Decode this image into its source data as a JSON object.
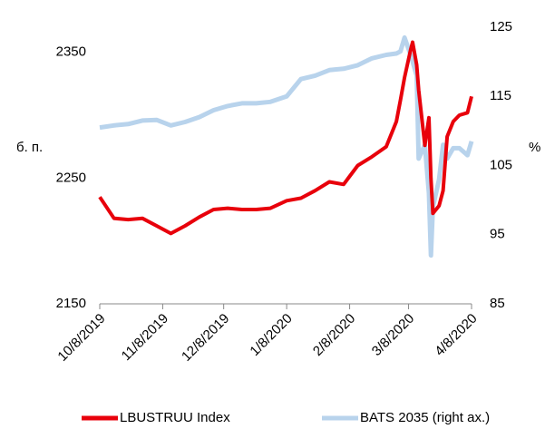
{
  "chart_data": {
    "type": "line",
    "y_label": "б. п.",
    "y2_label": "%",
    "x": [
      "10/8/2019",
      "10/15/2019",
      "10/22/2019",
      "10/29/2019",
      "11/5/2019",
      "11/12/2019",
      "11/19/2019",
      "11/26/2019",
      "12/3/2019",
      "12/10/2019",
      "12/17/2019",
      "12/24/2019",
      "12/31/2019",
      "1/8/2020",
      "1/15/2020",
      "1/22/2020",
      "1/29/2020",
      "2/5/2020",
      "2/12/2020",
      "2/19/2020",
      "2/26/2020",
      "3/2/2020",
      "3/4/2020",
      "3/6/2020",
      "3/9/2020",
      "3/10/2020",
      "3/12/2020",
      "3/13/2020",
      "3/16/2020",
      "3/18/2020",
      "3/19/2020",
      "3/20/2020",
      "3/23/2020",
      "3/25/2020",
      "3/27/2020",
      "3/30/2020",
      "4/2/2020",
      "4/6/2020",
      "4/8/2020"
    ],
    "series": [
      {
        "name": "LBUSTRUU Index",
        "color": "#e8000b",
        "axis": "y",
        "values": [
          2235,
          2218,
          2217,
          2218,
          2212,
          2206,
          2212,
          2219,
          2225,
          2226,
          2225,
          2225,
          2226,
          2232,
          2234,
          2240,
          2247,
          2245,
          2260,
          2267,
          2275,
          2295,
          2312,
          2330,
          2352,
          2358,
          2340,
          2320,
          2276,
          2298,
          2250,
          2222,
          2228,
          2240,
          2283,
          2295,
          2300,
          2302,
          2315
        ]
      },
      {
        "name": "BATS 2035 (right ax.)",
        "color": "#b8d3ec",
        "axis": "y2",
        "values": [
          110.5,
          110.8,
          111,
          111.5,
          111.6,
          110.8,
          111.3,
          112,
          113,
          113.6,
          114,
          114,
          114.2,
          115,
          117.5,
          118,
          118.8,
          119,
          119.5,
          120.5,
          121,
          121.2,
          121.5,
          123.5,
          121,
          120,
          118,
          106,
          108,
          101,
          92,
          99,
          103,
          108,
          106,
          107.5,
          107.5,
          106.5,
          108.5
        ]
      }
    ],
    "xlim": [
      "10/8/2019",
      "4/8/2020"
    ],
    "xticks": [
      "10/8/2019",
      "11/8/2019",
      "12/8/2019",
      "1/8/2020",
      "2/8/2020",
      "3/8/2020",
      "4/8/2020"
    ],
    "ylim": [
      2150,
      2370
    ],
    "yticks": [
      2150,
      2250,
      2350
    ],
    "y2lim": [
      85,
      125
    ],
    "y2ticks": [
      85,
      95,
      105,
      115,
      125
    ],
    "grid": false,
    "legend": "bottom"
  }
}
